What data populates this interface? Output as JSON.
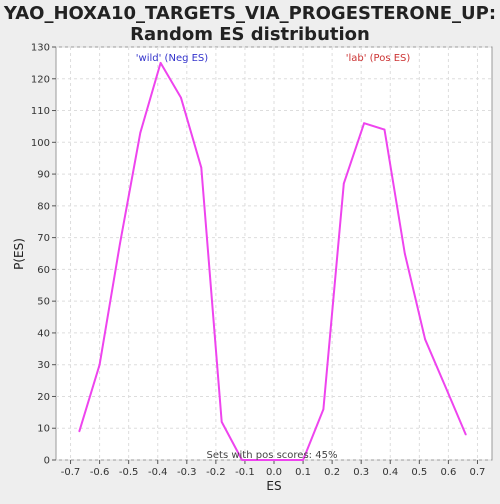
{
  "chart_data": {
    "type": "line",
    "title": "YAO_HOXA10_TARGETS_VIA_PROGESTERONE_UP:",
    "subtitle": "Random ES distribution",
    "xlabel": "ES",
    "ylabel": "P(ES)",
    "xlim": [
      -0.75,
      0.75
    ],
    "ylim": [
      0,
      130
    ],
    "x_ticks": [
      -0.7,
      -0.6,
      -0.5,
      -0.4,
      -0.3,
      -0.2,
      -0.1,
      0.0,
      0.1,
      0.2,
      0.3,
      0.4,
      0.5,
      0.6,
      0.7
    ],
    "x_tick_labels": [
      "-0.7",
      "-0.6",
      "-0.5",
      "-0.4",
      "-0.3",
      "-0.2",
      "-0.1",
      "0.0",
      "0.1",
      "0.2",
      "0.3",
      "0.4",
      "0.5",
      "0.6",
      "0.7"
    ],
    "y_ticks": [
      0,
      10,
      20,
      30,
      40,
      50,
      60,
      70,
      80,
      90,
      100,
      110,
      120,
      130
    ],
    "y_tick_labels": [
      "0",
      "10",
      "20",
      "30",
      "40",
      "50",
      "60",
      "70",
      "80",
      "90",
      "100",
      "110",
      "120",
      "130"
    ],
    "grid": true,
    "series": [
      {
        "color": "#ee44ee",
        "x": [
          -0.67,
          -0.6,
          -0.53,
          -0.46,
          -0.39,
          -0.32,
          -0.25,
          -0.18,
          -0.11,
          -0.04,
          0.03,
          0.1,
          0.17,
          0.24,
          0.31,
          0.38,
          0.45,
          0.52,
          0.59,
          0.66
        ],
        "y": [
          9,
          30,
          68,
          103,
          125,
          114,
          92,
          12,
          0,
          0,
          0,
          0,
          16,
          87,
          106,
          104,
          65,
          38,
          23,
          8
        ]
      }
    ],
    "annotations": {
      "neg": "'wild' (Neg ES)",
      "pos": "'lab' (Pos ES)",
      "bottom": "Sets with pos scores: 45%"
    },
    "colors": {
      "background": "#eeeeee",
      "plot_background": "#ffffff",
      "grid": "#dddddd",
      "neg_annotation": "#3333cc",
      "pos_annotation": "#cc3333"
    }
  }
}
